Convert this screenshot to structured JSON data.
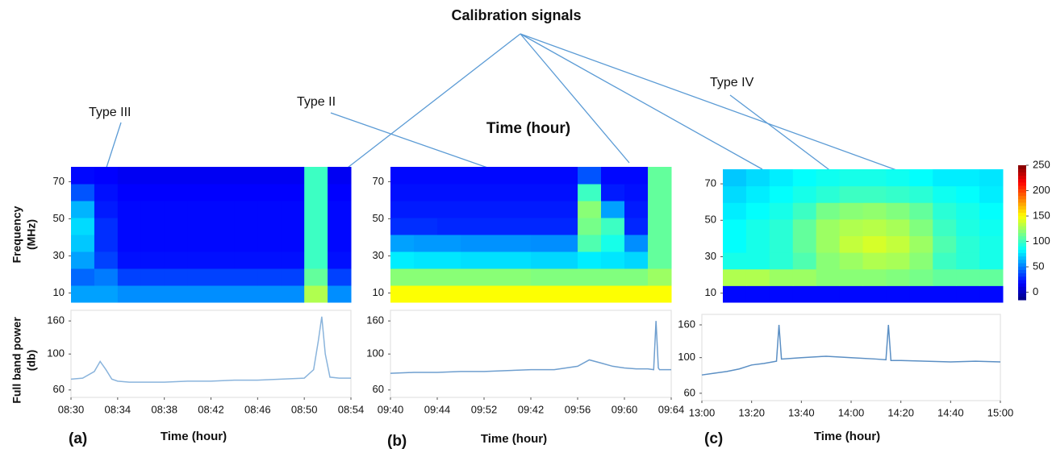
{
  "figure": {
    "title": "Calibration signals",
    "center_label": "Time (hour)",
    "annotations": [
      "Type III",
      "Type II",
      "Type IV"
    ]
  },
  "chart_data": [
    {
      "type": "heatmap",
      "ylabel": [
        "Frequency",
        "(MHz)"
      ],
      "xlim": [
        0,
        24
      ],
      "ylim": [
        5,
        78
      ],
      "yticks": [
        10,
        30,
        50,
        70
      ],
      "zlim": [
        -15,
        250
      ],
      "z": [
        [
          60,
          60,
          55,
          55,
          55,
          55,
          55,
          55,
          55,
          55,
          130,
          55
        ],
        [
          45,
          50,
          35,
          35,
          35,
          35,
          35,
          35,
          35,
          35,
          110,
          35
        ],
        [
          60,
          35,
          22,
          22,
          22,
          22,
          22,
          22,
          22,
          22,
          100,
          22
        ],
        [
          70,
          30,
          20,
          20,
          20,
          20,
          20,
          20,
          20,
          20,
          100,
          20
        ],
        [
          75,
          30,
          20,
          20,
          20,
          20,
          20,
          20,
          20,
          20,
          100,
          20
        ],
        [
          65,
          25,
          20,
          20,
          20,
          20,
          20,
          20,
          20,
          20,
          100,
          20
        ],
        [
          40,
          22,
          18,
          18,
          18,
          18,
          18,
          18,
          18,
          18,
          100,
          18
        ],
        [
          20,
          18,
          15,
          15,
          15,
          15,
          15,
          15,
          15,
          15,
          100,
          15
        ]
      ]
    },
    {
      "type": "heatmap",
      "xlim": [
        0,
        24
      ],
      "ylim": [
        5,
        78
      ],
      "yticks": [
        10,
        30,
        50,
        70
      ],
      "zlim": [
        -15,
        250
      ],
      "z": [
        [
          150,
          150,
          150,
          150,
          150,
          150,
          150,
          150,
          150,
          150,
          150,
          150
        ],
        [
          120,
          120,
          120,
          120,
          120,
          120,
          118,
          118,
          118,
          118,
          118,
          125
        ],
        [
          80,
          78,
          78,
          76,
          76,
          76,
          74,
          74,
          80,
          78,
          74,
          110
        ],
        [
          60,
          58,
          58,
          56,
          56,
          56,
          55,
          55,
          105,
          90,
          55,
          110
        ],
        [
          30,
          30,
          28,
          28,
          28,
          28,
          28,
          28,
          115,
          100,
          28,
          110
        ],
        [
          25,
          25,
          25,
          25,
          25,
          25,
          25,
          25,
          120,
          60,
          25,
          110
        ],
        [
          22,
          22,
          22,
          22,
          22,
          22,
          22,
          22,
          100,
          25,
          22,
          110
        ],
        [
          20,
          20,
          20,
          20,
          20,
          20,
          20,
          20,
          40,
          20,
          20,
          110
        ]
      ]
    },
    {
      "type": "heatmap",
      "xlim": [
        0,
        120
      ],
      "ylim": [
        5,
        78
      ],
      "yticks": [
        10,
        30,
        50,
        70
      ],
      "zlim": [
        -15,
        250
      ],
      "colorbar_ticks": [
        0,
        50,
        100,
        150,
        200,
        250
      ],
      "z": [
        [
          20,
          20,
          20,
          20,
          20,
          20,
          20,
          20,
          20,
          20,
          20,
          20
        ],
        [
          130,
          130,
          125,
          125,
          120,
          120,
          120,
          118,
          115,
          110,
          110,
          110
        ],
        [
          90,
          90,
          95,
          105,
          120,
          125,
          130,
          128,
          120,
          100,
          95,
          90
        ],
        [
          85,
          90,
          95,
          110,
          125,
          135,
          140,
          135,
          125,
          105,
          95,
          90
        ],
        [
          85,
          90,
          95,
          110,
          125,
          130,
          132,
          128,
          118,
          100,
          92,
          88
        ],
        [
          80,
          85,
          90,
          100,
          115,
          120,
          122,
          118,
          110,
          95,
          90,
          85
        ],
        [
          75,
          80,
          85,
          90,
          95,
          100,
          100,
          98,
          95,
          88,
          85,
          80
        ],
        [
          70,
          75,
          80,
          85,
          88,
          90,
          90,
          88,
          85,
          80,
          80,
          78
        ]
      ]
    },
    {
      "type": "line",
      "ylabel": [
        "Full band power",
        "(db)"
      ],
      "xlabel": "Time (hour)",
      "panel": "(a)",
      "log": true,
      "color": "#8ab4dc",
      "xlim": [
        0,
        24
      ],
      "ylim": [
        54,
        186
      ],
      "yticks": [
        60,
        100,
        160
      ],
      "xticks": [
        {
          "value": 0,
          "label": "08:30"
        },
        {
          "value": 4,
          "label": "08:34"
        },
        {
          "value": 8,
          "label": "08:38"
        },
        {
          "value": 12,
          "label": "08:42"
        },
        {
          "value": 16,
          "label": "08:46"
        },
        {
          "value": 20,
          "label": "08:50"
        },
        {
          "value": 24,
          "label": "08:54"
        }
      ],
      "x": [
        0,
        1,
        2,
        2.5,
        3,
        3.5,
        4,
        5,
        6,
        8,
        10,
        12,
        14,
        16,
        18,
        20,
        20.8,
        21.2,
        21.5,
        21.8,
        22.2,
        23,
        24
      ],
      "values": [
        70,
        71,
        78,
        90,
        80,
        70,
        68,
        67,
        67,
        67,
        68,
        68,
        69,
        69,
        70,
        71,
        80,
        120,
        170,
        100,
        72,
        71,
        71
      ]
    },
    {
      "type": "line",
      "xlabel": "Time (hour)",
      "panel": "(b)",
      "log": true,
      "color": "#6f9fcf",
      "xlim": [
        0,
        24
      ],
      "ylim": [
        54,
        186
      ],
      "yticks": [
        60,
        100,
        160
      ],
      "xticks": [
        {
          "value": 0,
          "label": "09:40"
        },
        {
          "value": 4,
          "label": "09:44"
        },
        {
          "value": 8,
          "label": "09:52"
        },
        {
          "value": 12,
          "label": "09:42"
        },
        {
          "value": 16,
          "label": "09:56"
        },
        {
          "value": 20,
          "label": "09:60"
        },
        {
          "value": 24,
          "label": "09:64"
        }
      ],
      "x": [
        0,
        2,
        4,
        6,
        8,
        10,
        12,
        14,
        16,
        17,
        18,
        19,
        20,
        21,
        22,
        22.5,
        22.7,
        22.9,
        23,
        24
      ],
      "values": [
        76,
        77,
        77,
        78,
        78,
        79,
        80,
        80,
        84,
        92,
        88,
        84,
        82,
        81,
        81,
        80,
        160,
        82,
        80,
        80
      ]
    },
    {
      "type": "line",
      "xlabel": "Time (hour)",
      "panel": "(c)",
      "log": true,
      "color": "#5b8fc4",
      "xlim": [
        0,
        120
      ],
      "ylim": [
        54,
        186
      ],
      "yticks": [
        60,
        100,
        160
      ],
      "xticks": [
        {
          "value": 0,
          "label": "13:00"
        },
        {
          "value": 20,
          "label": "13:20"
        },
        {
          "value": 40,
          "label": "13:40"
        },
        {
          "value": 60,
          "label": "14:00"
        },
        {
          "value": 80,
          "label": "14:20"
        },
        {
          "value": 100,
          "label": "14:40"
        },
        {
          "value": 120,
          "label": "15:00"
        }
      ],
      "x": [
        0,
        5,
        10,
        15,
        20,
        25,
        30,
        31,
        32,
        40,
        50,
        60,
        70,
        74,
        75,
        76,
        80,
        90,
        100,
        110,
        120
      ],
      "values": [
        78,
        80,
        82,
        85,
        90,
        92,
        95,
        160,
        98,
        100,
        102,
        100,
        98,
        97,
        160,
        96,
        96,
        95,
        94,
        95,
        94
      ]
    }
  ]
}
